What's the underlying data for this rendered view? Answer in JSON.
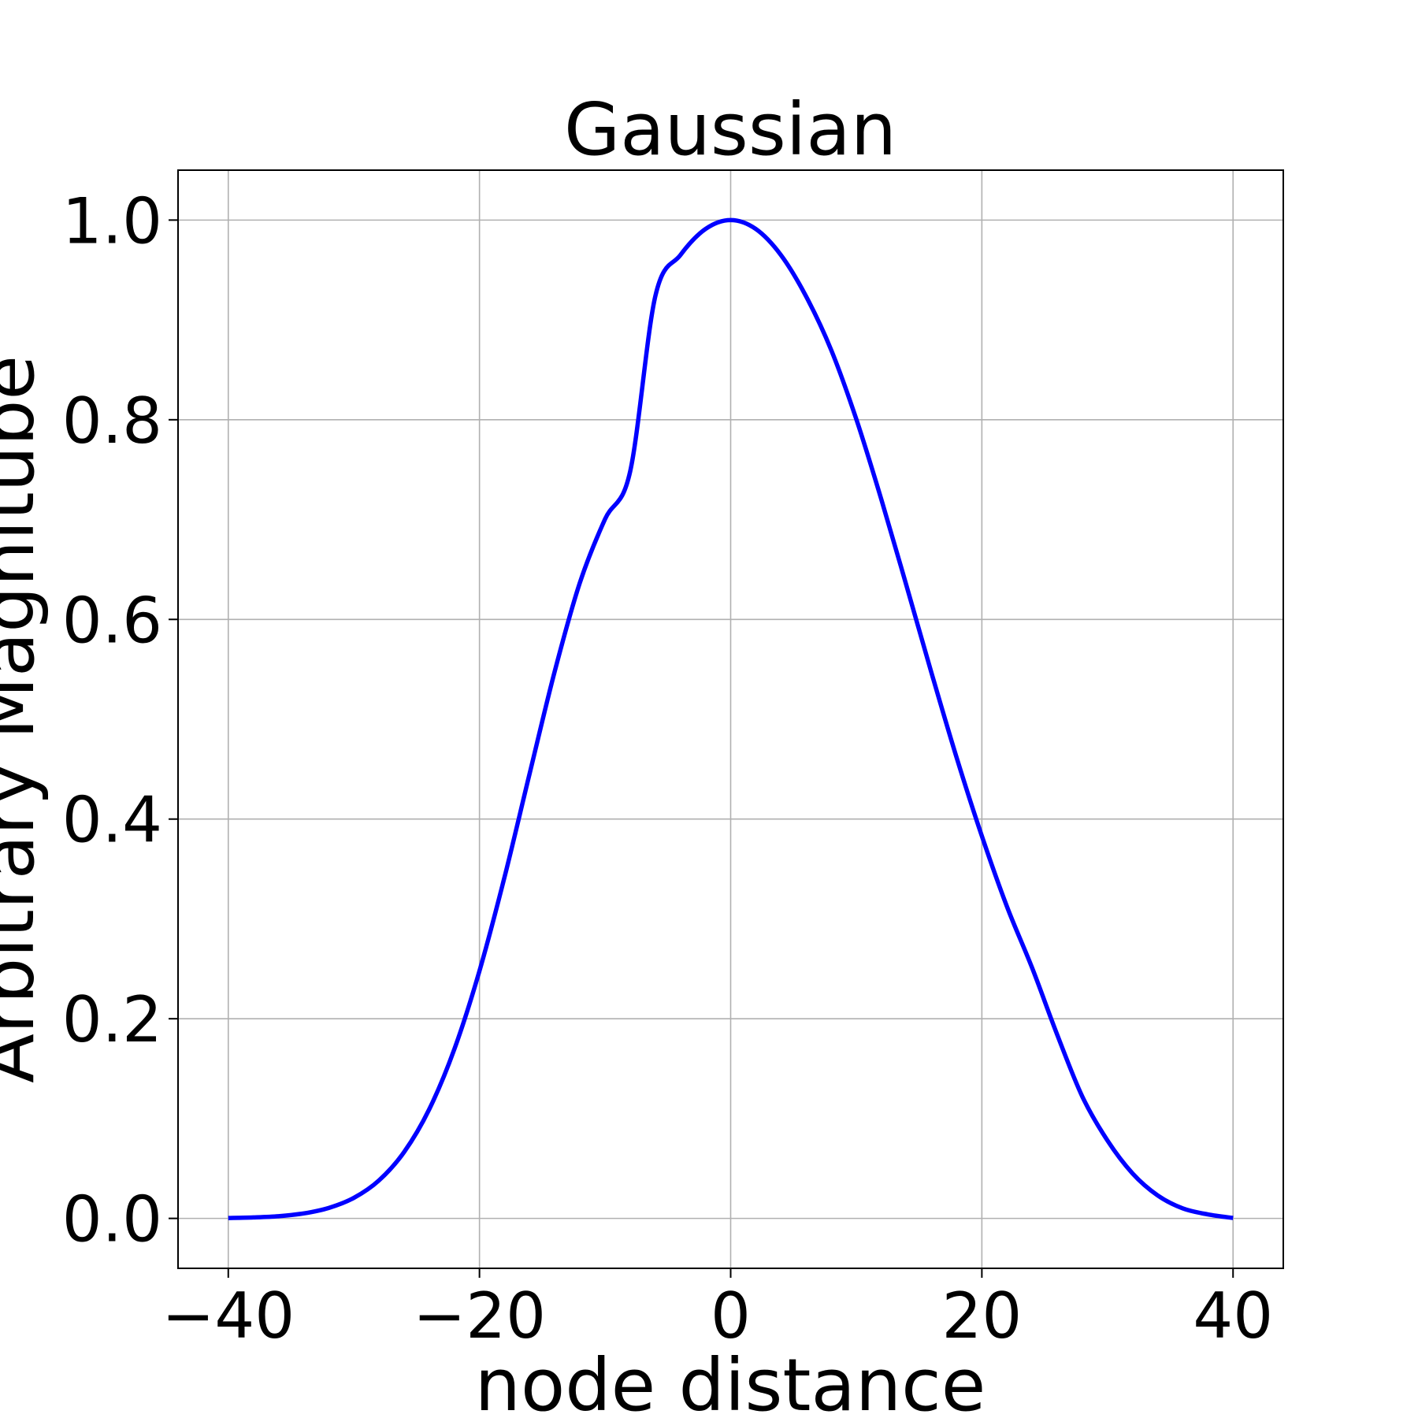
{
  "chart_data": {
    "type": "line",
    "title": "Gaussian",
    "xlabel": "node distance",
    "ylabel": "Arbitrary Magnitube",
    "xlim": [
      -44,
      44
    ],
    "ylim": [
      -0.05,
      1.05
    ],
    "xticks": [
      -40,
      -20,
      0,
      20,
      40
    ],
    "xtick_labels": [
      "−40",
      "−20",
      "0",
      "20",
      "40"
    ],
    "yticks": [
      0.0,
      0.2,
      0.4,
      0.6,
      0.8,
      1.0
    ],
    "ytick_labels": [
      "0.0",
      "0.2",
      "0.4",
      "0.6",
      "0.8",
      "1.0"
    ],
    "grid": true,
    "series": [
      {
        "color": "#0000ff",
        "x": [
          -40,
          -38,
          -36,
          -34,
          -32,
          -30,
          -28,
          -26,
          -24,
          -22,
          -20,
          -18,
          -16,
          -14,
          -12,
          -10,
          -8,
          -6,
          -4,
          -2,
          0,
          2,
          4,
          6,
          8,
          10,
          12,
          14,
          16,
          18,
          20,
          22,
          24,
          26,
          28,
          30,
          32,
          34,
          36,
          38,
          40
        ],
        "y": [
          0.0004,
          0.001,
          0.0022,
          0.005,
          0.0105,
          0.0206,
          0.0381,
          0.0665,
          0.1093,
          0.1695,
          0.2479,
          0.3421,
          0.4459,
          0.5484,
          0.637,
          0.7005,
          0.7483,
          0.9237,
          0.965,
          0.9911,
          1.0,
          0.9911,
          0.965,
          0.9237,
          0.87,
          0.8007,
          0.72,
          0.6337,
          0.546,
          0.4612,
          0.383,
          0.3123,
          0.251,
          0.184,
          0.122,
          0.078,
          0.045,
          0.023,
          0.01,
          0.004,
          0.0004
        ]
      }
    ]
  }
}
